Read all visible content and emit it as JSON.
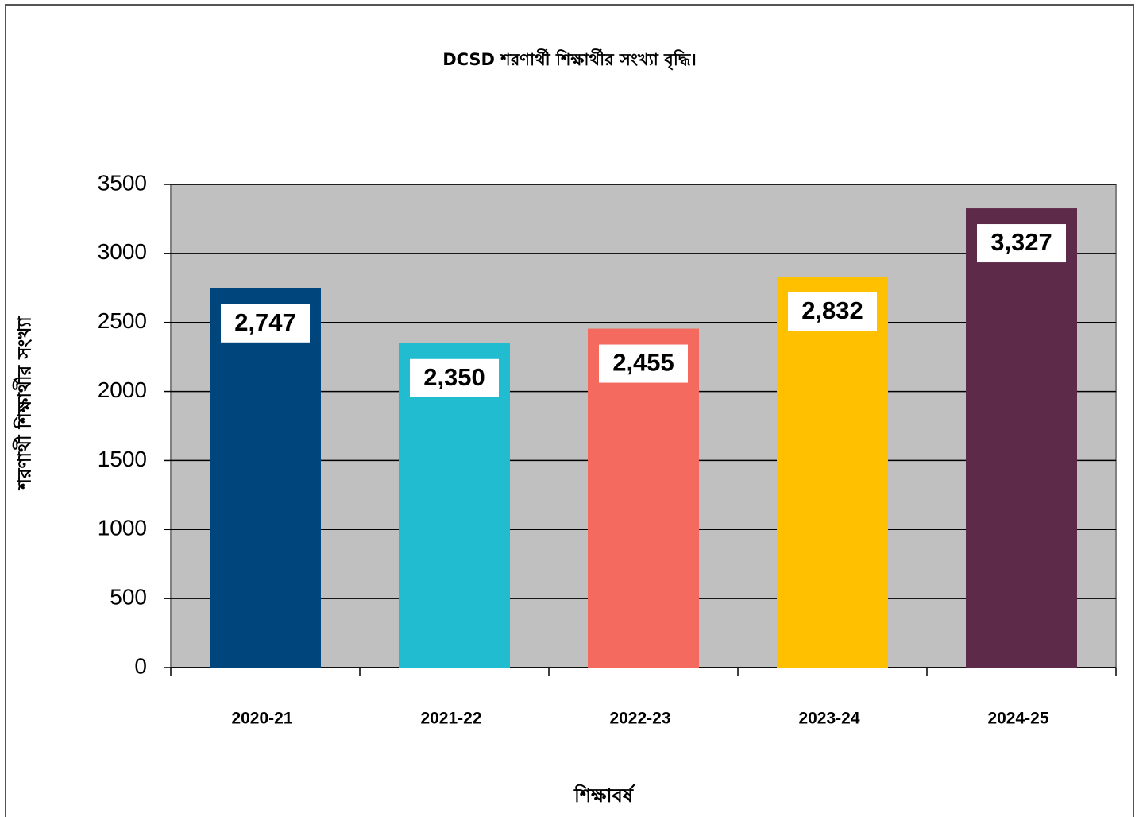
{
  "chart_data": {
    "type": "bar",
    "title": "DCSD শরণার্থী শিক্ষার্থীর সংখ্যা বৃদ্ধি।",
    "x_label": "শিক্ষাবর্ষ",
    "y_label": "শরণার্থী শিক্ষার্থীর সংখ্যা",
    "categories": [
      "2020-21",
      "2021-22",
      "2022-23",
      "2023-24",
      "2024-25"
    ],
    "values": [
      2747,
      2350,
      2455,
      2832,
      3327
    ],
    "value_labels": [
      "2,747",
      "2,350",
      "2,455",
      "2,832",
      "3,327"
    ],
    "colors": [
      "#00457c",
      "#22bcd1",
      "#f46a5e",
      "#ffc000",
      "#5d2a4a"
    ],
    "ylim": [
      0,
      3500
    ],
    "yticks": [
      0,
      500,
      1000,
      1500,
      2000,
      2500,
      3000,
      3500
    ],
    "grid": true
  }
}
